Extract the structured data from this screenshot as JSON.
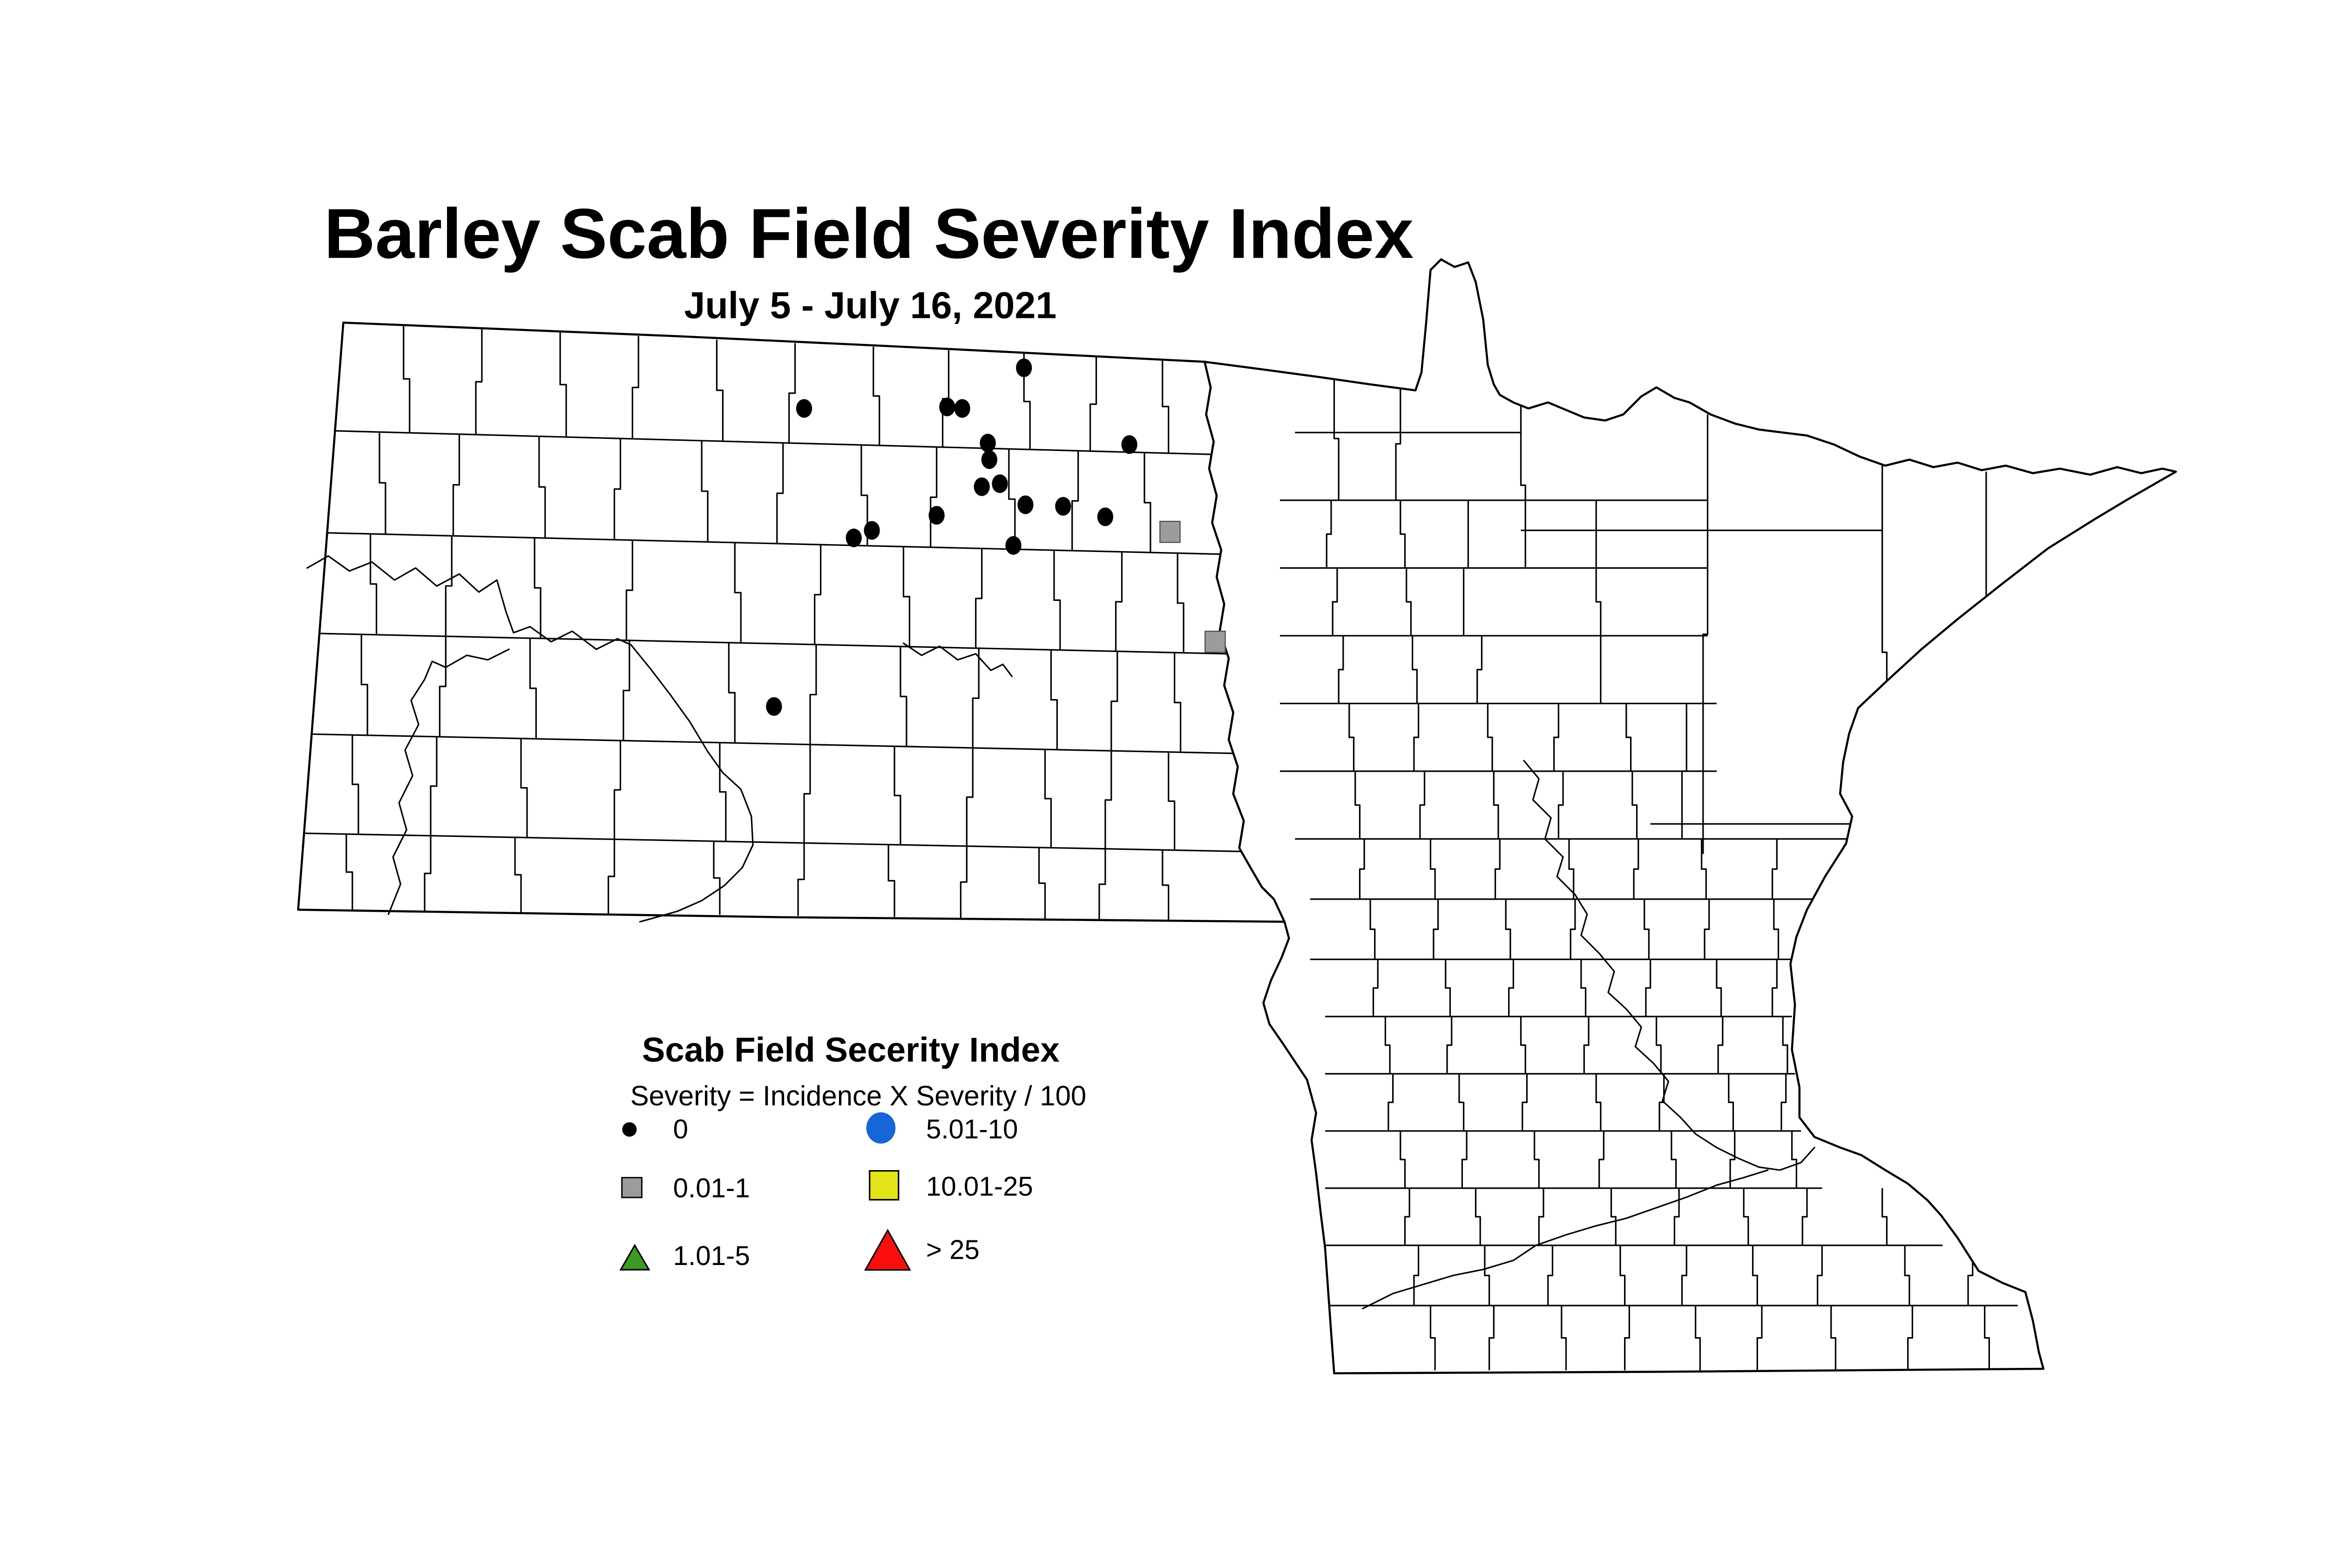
{
  "title": "Barley Scab Field Severity Index",
  "subtitle": "July 5 - July 16, 2021",
  "legend": {
    "title": "Scab Field Secerity Index",
    "formula": "Severity = Incidence X Severity / 100",
    "items": [
      {
        "label": "0",
        "symbol": "black-dot",
        "fill": "#000000"
      },
      {
        "label": "0.01-1",
        "symbol": "gray-square",
        "fill": "#9c9c9c"
      },
      {
        "label": "1.01-5",
        "symbol": "green-triangle",
        "fill": "#3d9b23"
      },
      {
        "label": "5.01-10",
        "symbol": "blue-circle",
        "fill": "#1566d6"
      },
      {
        "label": "10.01-25",
        "symbol": "yellow-square",
        "fill": "#e3e31a"
      },
      {
        "label": "> 25",
        "symbol": "red-triangle",
        "fill": "#fb0f0c"
      }
    ]
  },
  "chart_data": {
    "type": "scatter",
    "title": "Barley Scab Field Severity Index",
    "subtitle": "July 5 - July 16, 2021",
    "geography": [
      "North Dakota",
      "Minnesota"
    ],
    "legend_position": "bottom-left",
    "series": [
      {
        "name": "0",
        "marker": "black-dot",
        "color": "#000000",
        "points": [
          [
            534,
            154
          ],
          [
            629,
            153
          ],
          [
            639,
            154
          ],
          [
            680,
            127
          ],
          [
            656,
            177
          ],
          [
            657,
            188
          ],
          [
            750,
            178
          ],
          [
            652,
            206
          ],
          [
            664,
            204
          ],
          [
            681,
            218
          ],
          [
            706,
            219
          ],
          [
            734,
            226
          ],
          [
            622,
            225
          ],
          [
            673,
            245
          ],
          [
            579,
            235
          ],
          [
            567,
            240
          ],
          [
            514,
            352
          ]
        ]
      },
      {
        "name": "0.01-1",
        "marker": "gray-square",
        "color": "#9c9c9c",
        "points": [
          [
            777,
            236
          ],
          [
            807,
            309
          ]
        ]
      }
    ]
  }
}
